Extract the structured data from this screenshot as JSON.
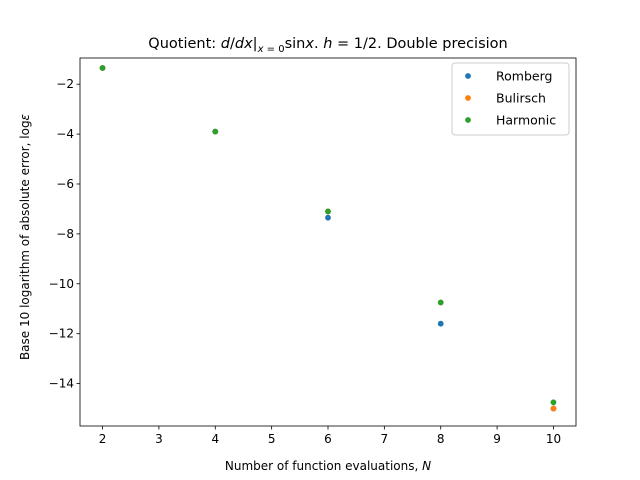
{
  "chart_data": {
    "type": "scatter",
    "title": "Quotient: d/dx|x=0 sinx. h = 1/2. Double precision",
    "xlabel": "Number of function evaluations, N",
    "ylabel": "Base 10 logarithm of absolute error, logε",
    "xlim": [
      1.6,
      10.4
    ],
    "ylim": [
      -15.7,
      -0.95
    ],
    "xticks": [
      2,
      3,
      4,
      5,
      6,
      7,
      8,
      9,
      10
    ],
    "yticks": [
      -14,
      -12,
      -10,
      -8,
      -6,
      -4,
      -2
    ],
    "legend_position": "top-right",
    "grid": false,
    "series": [
      {
        "name": "Romberg",
        "color": "#1f77b4",
        "x": [
          2,
          4,
          6,
          8,
          10
        ],
        "y": [
          -1.35,
          -3.9,
          -7.35,
          -11.6,
          -15.0
        ]
      },
      {
        "name": "Bulirsch",
        "color": "#ff7f0e",
        "x": [
          2,
          4,
          6,
          8,
          10
        ],
        "y": [
          -1.35,
          -3.9,
          -7.1,
          -10.75,
          -15.0
        ]
      },
      {
        "name": "Harmonic",
        "color": "#2ca02c",
        "x": [
          2,
          4,
          6,
          8,
          10
        ],
        "y": [
          -1.35,
          -3.9,
          -7.1,
          -10.75,
          -14.75
        ]
      }
    ]
  }
}
